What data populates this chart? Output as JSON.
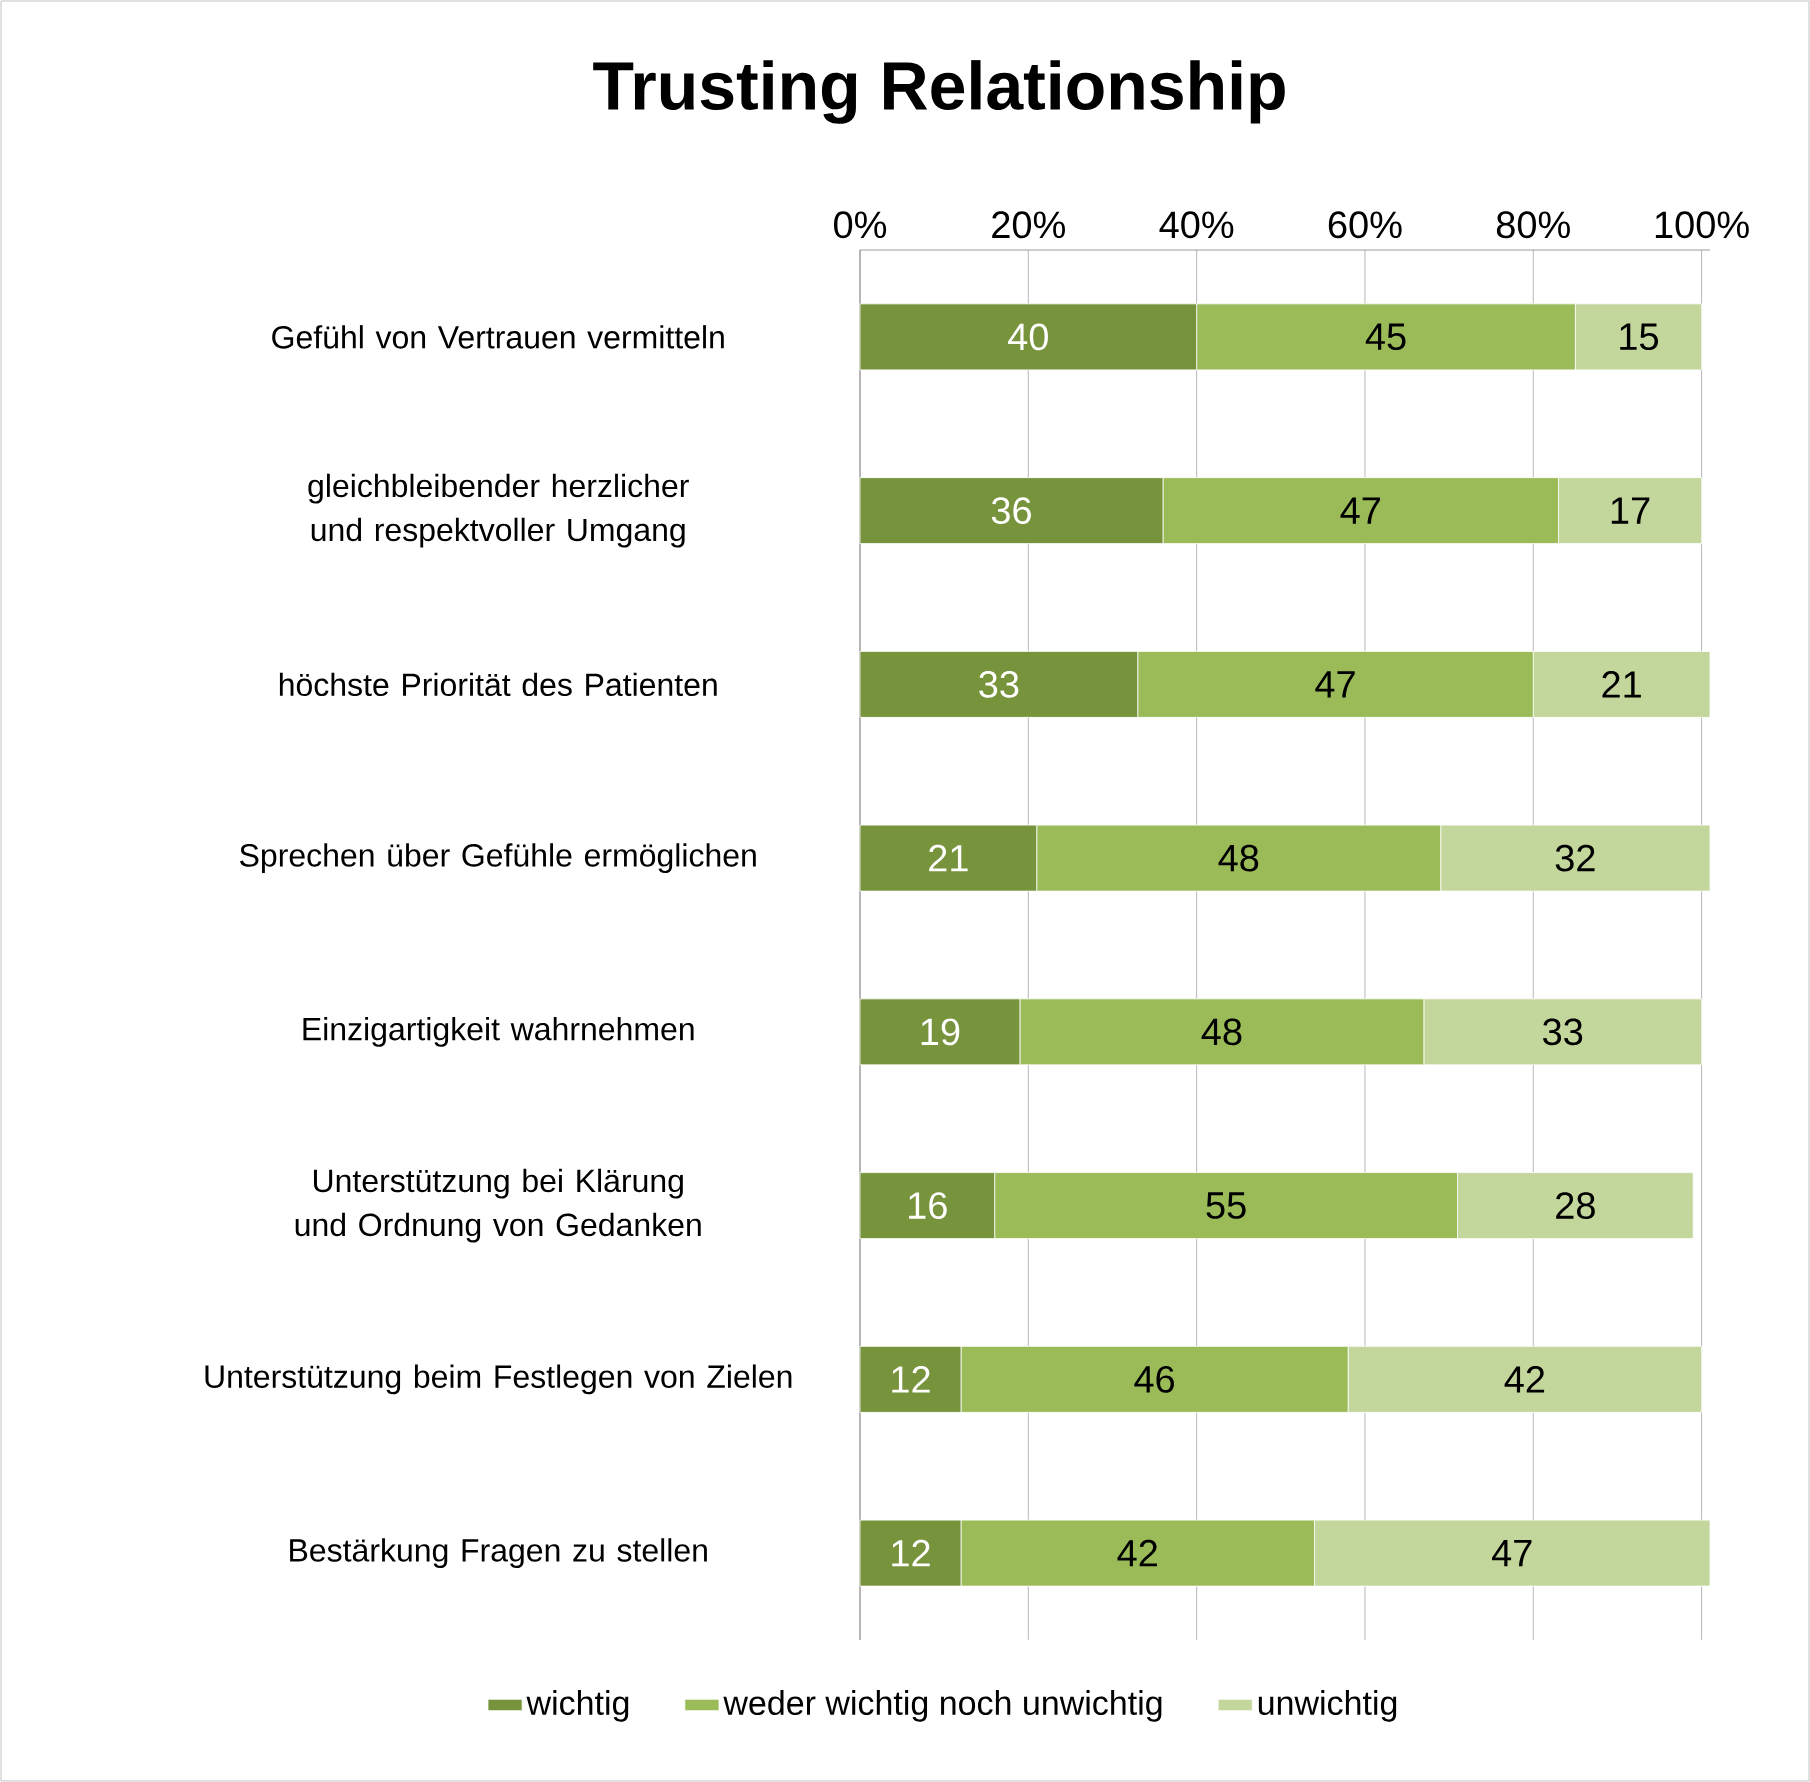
{
  "chart_data": {
    "type": "bar",
    "orientation": "horizontal",
    "stacked": true,
    "title": "Trusting Relationship",
    "categories": [
      "Gefühl von Vertrauen vermitteln",
      "gleichbleibender herzlicher und respektvoller Umgang",
      "höchste Priorität des Patienten",
      "Sprechen über Gefühle ermöglichen",
      "Einzigartigkeit wahrnehmen",
      "Unterstützung bei Klärung und Ordnung von Gedanken",
      "Unterstützung beim Festlegen von Zielen",
      "Bestärkung Fragen zu stellen"
    ],
    "series": [
      {
        "name": "wichtig",
        "color": "#77933c",
        "values": [
          40,
          36,
          33,
          21,
          19,
          16,
          12,
          12
        ],
        "value_labels": [
          "40",
          "36",
          "33",
          "21",
          "19",
          "16",
          "12",
          "12"
        ]
      },
      {
        "name": "weder wichtig noch unwichtig",
        "color": "#9bbb59",
        "values": [
          45,
          47,
          47,
          48,
          48,
          55,
          46,
          42
        ],
        "value_labels": [
          "45",
          "47",
          "47",
          "48",
          "48",
          "55",
          "46",
          "42"
        ]
      },
      {
        "name": "unwichtig",
        "color": "#c3d69b",
        "values": [
          15,
          17,
          21,
          32,
          33,
          28,
          42,
          47
        ],
        "value_labels": [
          "15",
          "17",
          "21",
          "32",
          "33",
          "28",
          "42",
          "47"
        ]
      }
    ],
    "xlim": [
      0,
      101
    ],
    "xticks": [
      {
        "value": 0,
        "label": "0%"
      },
      {
        "value": 20,
        "label": "20%"
      },
      {
        "value": 40,
        "label": "40%"
      },
      {
        "value": 60,
        "label": "60%"
      },
      {
        "value": 80,
        "label": "80%"
      },
      {
        "value": 100,
        "label": "100%"
      }
    ],
    "grid": "x",
    "legend": "bottom"
  }
}
